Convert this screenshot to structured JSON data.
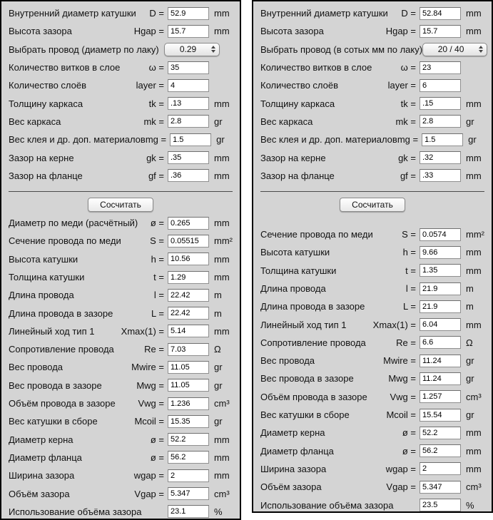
{
  "colors": {
    "panel_background": "#d4d4d4",
    "panel_border": "#000000",
    "input_background": "#ffffff",
    "text": "#111111"
  },
  "panels": [
    {
      "side": "left",
      "button_label": "Сосчитать",
      "inputs": [
        {
          "label": "Внутренний диаметр катушки",
          "symbol": "D =",
          "value": "52.9",
          "unit": "mm"
        },
        {
          "label": "Высота зазора",
          "symbol": "Hgap =",
          "value": "15.7",
          "unit": "mm"
        },
        {
          "label": "Выбрать провод (диаметр по лаку)",
          "type": "select",
          "value": "0.29"
        },
        {
          "label": "Количество витков в слое",
          "symbol": "ω =",
          "value": "35",
          "unit": ""
        },
        {
          "label": "Количество слоёв",
          "symbol": "layer =",
          "value": "4",
          "unit": ""
        },
        {
          "label": "Толщину каркаса",
          "symbol": "tk =",
          "value": ".13",
          "unit": "mm"
        },
        {
          "label": "Вес каркаса",
          "symbol": "mk =",
          "value": "2.8",
          "unit": "gr"
        },
        {
          "label": "Вес клея и др. доп. материалов",
          "symbol": "mg =",
          "value": "1.5",
          "unit": "gr"
        },
        {
          "label": "Зазор на керне",
          "symbol": "gk =",
          "value": ".35",
          "unit": "mm"
        },
        {
          "label": "Зазор на фланце",
          "symbol": "gf =",
          "value": ".36",
          "unit": "mm"
        }
      ],
      "results": [
        {
          "label": "Диаметр по меди (расчётный)",
          "symbol": "ø =",
          "value": "0.265",
          "unit": "mm"
        },
        {
          "label": "Сечение провода по меди",
          "symbol": "S =",
          "value": "0.05515",
          "unit": "mm²"
        },
        {
          "label": "Высота катушки",
          "symbol": "h =",
          "value": "10.56",
          "unit": "mm"
        },
        {
          "label": "Толщина катушки",
          "symbol": "t =",
          "value": "1.29",
          "unit": "mm"
        },
        {
          "label": "Длина провода",
          "symbol": "l =",
          "value": "22.42",
          "unit": "m"
        },
        {
          "label": "Длина провода в зазоре",
          "symbol": "L =",
          "value": "22.42",
          "unit": "m"
        },
        {
          "label": "Линейный ход тип 1",
          "symbol": "Xmax(1) =",
          "value": "5.14",
          "unit": "mm"
        },
        {
          "label": "Сопротивление провода",
          "symbol": "Re =",
          "value": "7.03",
          "unit": "Ω"
        },
        {
          "label": "Вес провода",
          "symbol": "Mwire =",
          "value": "11.05",
          "unit": "gr"
        },
        {
          "label": "Вес провода в зазоре",
          "symbol": "Mwg =",
          "value": "11.05",
          "unit": "gr"
        },
        {
          "label": "Объём провода в зазоре",
          "symbol": "Vwg =",
          "value": "1.236",
          "unit": "cm³"
        },
        {
          "label": "Вес катушки в сборе",
          "symbol": "Mcoil =",
          "value": "15.35",
          "unit": "gr"
        },
        {
          "label": "Диаметр керна",
          "symbol": "ø =",
          "value": "52.2",
          "unit": "mm"
        },
        {
          "label": "Диаметр фланца",
          "symbol": "ø =",
          "value": "56.2",
          "unit": "mm"
        },
        {
          "label": "Ширина зазора",
          "symbol": "wgap =",
          "value": "2",
          "unit": "mm"
        },
        {
          "label": "Объём зазора",
          "symbol": "Vgap =",
          "value": "5.347",
          "unit": "cm³"
        },
        {
          "label": "Использование объёма зазора",
          "symbol": "",
          "value": "23.1",
          "unit": "%"
        }
      ]
    },
    {
      "side": "right",
      "button_label": "Сосчитать",
      "inputs": [
        {
          "label": "Внутренний диаметр катушки",
          "symbol": "D =",
          "value": "52.84",
          "unit": "mm"
        },
        {
          "label": "Высота зазора",
          "symbol": "Hgap =",
          "value": "15.7",
          "unit": "mm"
        },
        {
          "label": "Выбрать провод (в сотых мм по лаку)",
          "type": "select",
          "value": "20 / 40"
        },
        {
          "label": "Количество витков в слое",
          "symbol": "ω =",
          "value": "23",
          "unit": ""
        },
        {
          "label": "Количество слоёв",
          "symbol": "layer =",
          "value": "6",
          "unit": ""
        },
        {
          "label": "Толщину каркаса",
          "symbol": "tk =",
          "value": ".15",
          "unit": "mm"
        },
        {
          "label": "Вес каркаса",
          "symbol": "mk =",
          "value": "2.8",
          "unit": "gr"
        },
        {
          "label": "Вес клея и др. доп. материалов",
          "symbol": "mg =",
          "value": "1.5",
          "unit": "gr"
        },
        {
          "label": "Зазор на керне",
          "symbol": "gk =",
          "value": ".32",
          "unit": "mm"
        },
        {
          "label": "Зазор на фланце",
          "symbol": "gf =",
          "value": ".33",
          "unit": "mm"
        }
      ],
      "results": [
        {
          "label": "Сечение провода по меди",
          "symbol": "S =",
          "value": "0.0574",
          "unit": "mm²"
        },
        {
          "label": "Высота катушки",
          "symbol": "h =",
          "value": "9.66",
          "unit": "mm"
        },
        {
          "label": "Толщина катушки",
          "symbol": "t =",
          "value": "1.35",
          "unit": "mm"
        },
        {
          "label": "Длина провода",
          "symbol": "l =",
          "value": "21.9",
          "unit": "m"
        },
        {
          "label": "Длина провода в зазоре",
          "symbol": "L =",
          "value": "21.9",
          "unit": "m"
        },
        {
          "label": "Линейный ход тип 1",
          "symbol": "Xmax(1) =",
          "value": "6.04",
          "unit": "mm"
        },
        {
          "label": "Сопротивление провода",
          "symbol": "Re =",
          "value": "6.6",
          "unit": "Ω"
        },
        {
          "label": "Вес провода",
          "symbol": "Mwire =",
          "value": "11.24",
          "unit": "gr"
        },
        {
          "label": "Вес провода в зазоре",
          "symbol": "Mwg =",
          "value": "11.24",
          "unit": "gr"
        },
        {
          "label": "Объём провода в зазоре",
          "symbol": "Vwg =",
          "value": "1.257",
          "unit": "cm³"
        },
        {
          "label": "Вес катушки в сборе",
          "symbol": "Mcoil =",
          "value": "15.54",
          "unit": "gr"
        },
        {
          "label": "Диаметр керна",
          "symbol": "ø =",
          "value": "52.2",
          "unit": "mm"
        },
        {
          "label": "Диаметр фланца",
          "symbol": "ø =",
          "value": "56.2",
          "unit": "mm"
        },
        {
          "label": "Ширина зазора",
          "symbol": "wgap =",
          "value": "2",
          "unit": "mm"
        },
        {
          "label": "Объём зазора",
          "symbol": "Vgap =",
          "value": "5.347",
          "unit": "cm³"
        },
        {
          "label": "Использование объёма зазора",
          "symbol": "",
          "value": "23.5",
          "unit": "%"
        }
      ]
    }
  ]
}
